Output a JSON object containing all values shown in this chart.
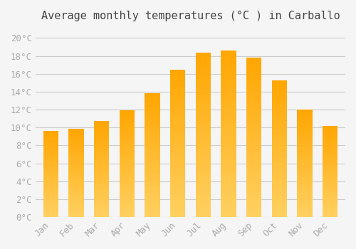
{
  "title": "Average monthly temperatures (°C ) in Carballo",
  "months": [
    "Jan",
    "Feb",
    "Mar",
    "Apr",
    "May",
    "Jun",
    "Jul",
    "Aug",
    "Sep",
    "Oct",
    "Nov",
    "Dec"
  ],
  "temperatures": [
    9.6,
    9.9,
    10.7,
    11.9,
    13.8,
    16.5,
    18.4,
    18.6,
    17.8,
    15.3,
    12.0,
    10.2
  ],
  "bar_color_top": "#FFA500",
  "bar_color_bottom": "#FFD580",
  "background_color": "#f5f5f5",
  "grid_color": "#cccccc",
  "ylim": [
    0,
    21
  ],
  "yticks": [
    0,
    2,
    4,
    6,
    8,
    10,
    12,
    14,
    16,
    18,
    20
  ],
  "ytick_labels": [
    "0°C",
    "2°C",
    "4°C",
    "6°C",
    "8°C",
    "10°C",
    "12°C",
    "14°C",
    "16°C",
    "18°C",
    "20°C"
  ],
  "title_fontsize": 11,
  "tick_fontsize": 9,
  "bar_width": 0.6
}
